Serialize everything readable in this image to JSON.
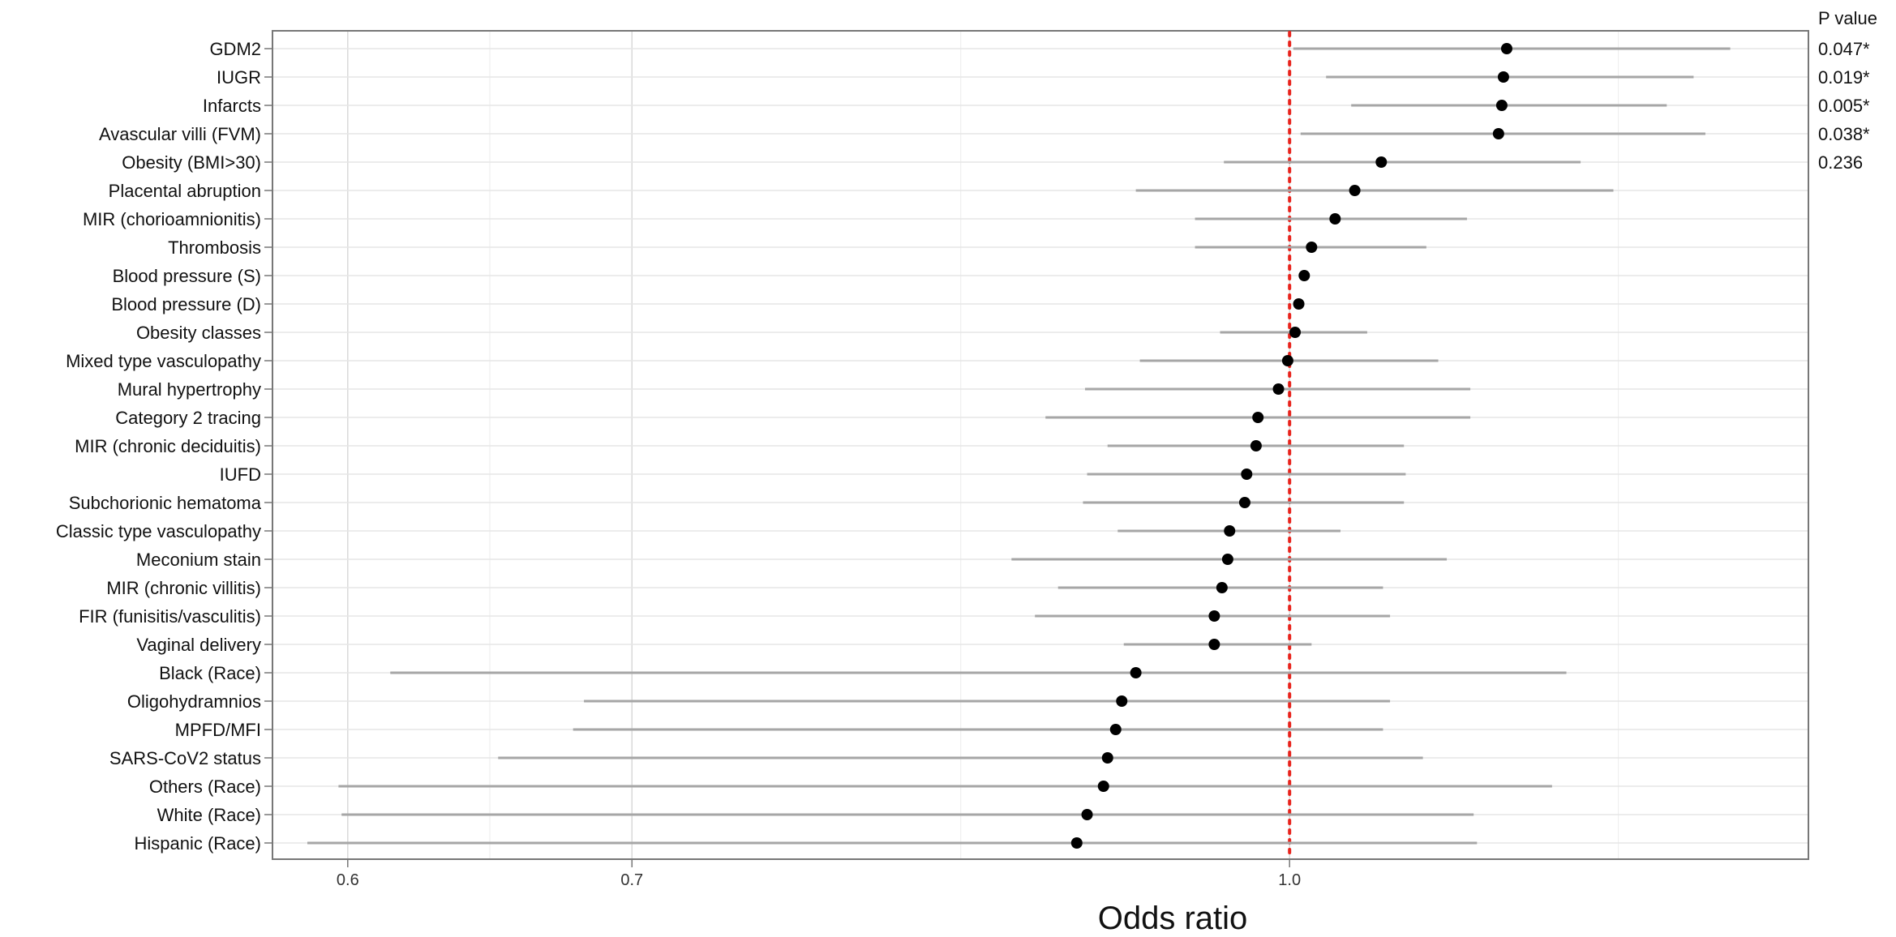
{
  "chart_data": {
    "type": "forest",
    "xlabel": "Odds ratio",
    "x_scale": "log",
    "xlim": [
      0.576,
      1.325
    ],
    "xticks": [
      0.6,
      0.7,
      1.0
    ],
    "xtick_labels": [
      "0.6",
      "0.7",
      "1.0"
    ],
    "reference_line": 1.0,
    "reference_line_color": "#e8231c",
    "grid": true,
    "pvalue_header": "P value",
    "rows": [
      {
        "label": "GDM2",
        "or": 1.125,
        "lo": 1.002,
        "hi": 1.27,
        "p": "0.047*"
      },
      {
        "label": "IUGR",
        "or": 1.123,
        "lo": 1.02,
        "hi": 1.245,
        "p": "0.019*"
      },
      {
        "label": "Infarcts",
        "or": 1.122,
        "lo": 1.034,
        "hi": 1.227,
        "p": "0.005*"
      },
      {
        "label": "Avascular villi (FVM)",
        "or": 1.12,
        "lo": 1.006,
        "hi": 1.253,
        "p": "0.038*"
      },
      {
        "label": "Obesity (BMI>30)",
        "or": 1.051,
        "lo": 0.965,
        "hi": 1.171,
        "p": "0.236"
      },
      {
        "label": "Placental abruption",
        "or": 1.036,
        "lo": 0.92,
        "hi": 1.192
      },
      {
        "label": "MIR (chorioamnionitis)",
        "or": 1.025,
        "lo": 0.95,
        "hi": 1.101
      },
      {
        "label": "Thrombosis",
        "or": 1.012,
        "lo": 0.95,
        "hi": 1.077
      },
      {
        "label": "Blood pressure (S)",
        "or": 1.008,
        "lo": null,
        "hi": null
      },
      {
        "label": "Blood pressure (D)",
        "or": 1.005,
        "lo": null,
        "hi": null
      },
      {
        "label": "Obesity classes",
        "or": 1.003,
        "lo": 0.963,
        "hi": 1.043
      },
      {
        "label": "Mixed type vasculopathy",
        "or": 0.999,
        "lo": 0.922,
        "hi": 1.084
      },
      {
        "label": "Mural hypertrophy",
        "or": 0.994,
        "lo": 0.895,
        "hi": 1.103
      },
      {
        "label": "Category 2 tracing",
        "or": 0.983,
        "lo": 0.876,
        "hi": 1.103
      },
      {
        "label": "MIR (chronic deciduitis)",
        "or": 0.982,
        "lo": 0.906,
        "hi": 1.064
      },
      {
        "label": "IUFD",
        "or": 0.977,
        "lo": 0.896,
        "hi": 1.065
      },
      {
        "label": "Subchorionic hematoma",
        "or": 0.976,
        "lo": 0.894,
        "hi": 1.064
      },
      {
        "label": "Classic type vasculopathy",
        "or": 0.968,
        "lo": 0.911,
        "hi": 1.028
      },
      {
        "label": "Meconium stain",
        "or": 0.967,
        "lo": 0.86,
        "hi": 1.089
      },
      {
        "label": "MIR (chronic villitis)",
        "or": 0.964,
        "lo": 0.882,
        "hi": 1.052
      },
      {
        "label": "FIR (funisitis/vasculitis)",
        "or": 0.96,
        "lo": 0.871,
        "hi": 1.056
      },
      {
        "label": "Vaginal delivery",
        "or": 0.96,
        "lo": 0.914,
        "hi": 1.012
      },
      {
        "label": "Black (Race)",
        "or": 0.92,
        "lo": 0.614,
        "hi": 1.162
      },
      {
        "label": "Oligohydramnios",
        "or": 0.913,
        "lo": 0.682,
        "hi": 1.056
      },
      {
        "label": "MPFD/MFI",
        "or": 0.91,
        "lo": 0.678,
        "hi": 1.052
      },
      {
        "label": "SARS-CoV2 status",
        "or": 0.906,
        "lo": 0.651,
        "hi": 1.075
      },
      {
        "label": "Others (Race)",
        "or": 0.904,
        "lo": 0.597,
        "hi": 1.153
      },
      {
        "label": "White (Race)",
        "or": 0.896,
        "lo": 0.598,
        "hi": 1.105
      },
      {
        "label": "Hispanic (Race)",
        "or": 0.891,
        "lo": 0.587,
        "hi": 1.107
      }
    ]
  }
}
